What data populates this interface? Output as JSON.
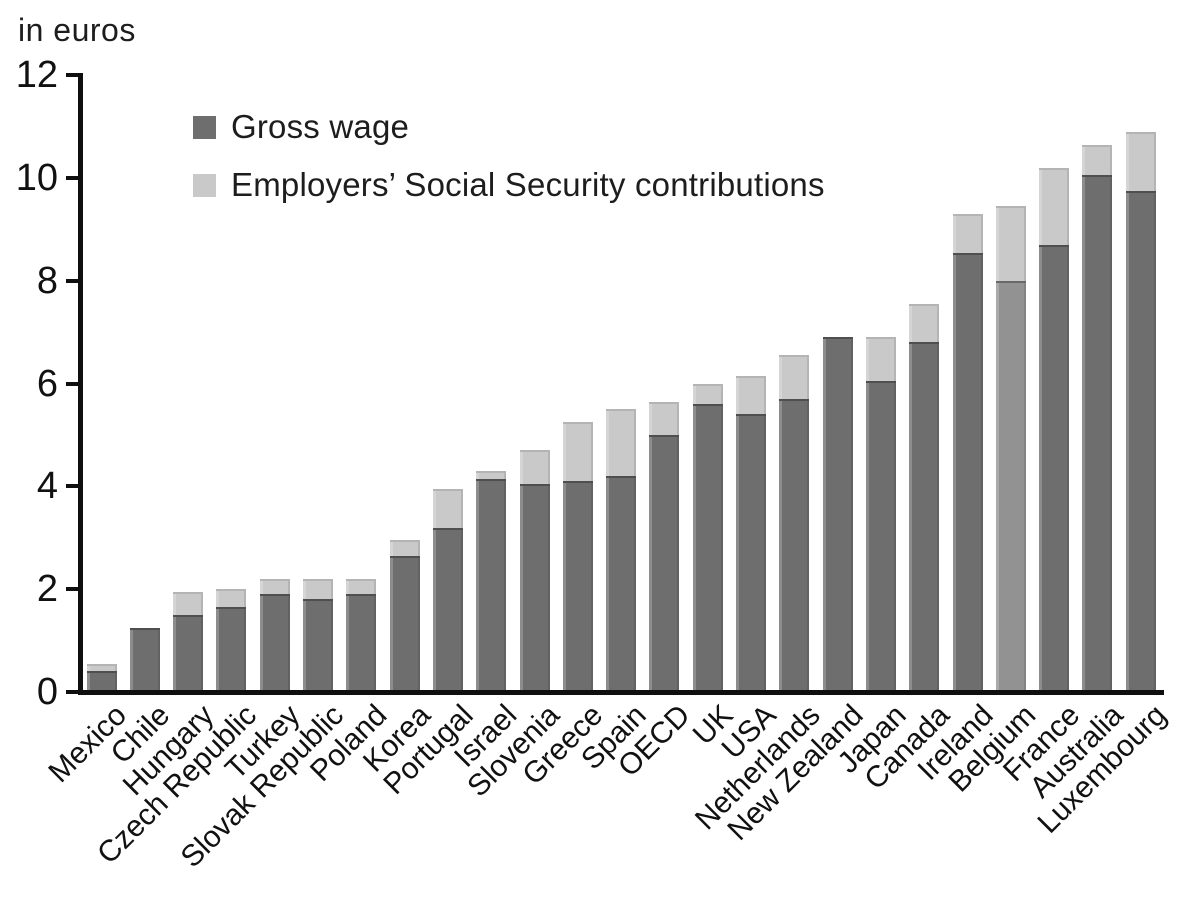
{
  "chart_data": {
    "type": "bar",
    "stacked": true,
    "title": "in euros",
    "categories": [
      "Mexico",
      "Chile",
      "Hungary",
      "Czech Republic",
      "Turkey",
      "Slovak Republic",
      "Poland",
      "Korea",
      "Portugal",
      "Israel",
      "Slovenia",
      "Greece",
      "Spain",
      "OECD",
      "UK",
      "USA",
      "Netherlands",
      "New Zealand",
      "Japan",
      "Canada",
      "Ireland",
      "Belgium",
      "France",
      "Australia",
      "Luxembourg"
    ],
    "series": [
      {
        "name": "Gross wage",
        "values": [
          0.4,
          1.25,
          1.5,
          1.65,
          1.9,
          1.8,
          1.9,
          2.65,
          3.2,
          4.15,
          4.05,
          4.1,
          4.2,
          5.0,
          5.6,
          5.4,
          5.7,
          6.9,
          6.05,
          6.8,
          8.55,
          8.0,
          8.7,
          10.05,
          9.75
        ]
      },
      {
        "name": "Employers’ Social Security contributions",
        "values": [
          0.15,
          0,
          0.45,
          0.35,
          0.3,
          0.4,
          0.3,
          0.3,
          0.75,
          0.15,
          0.65,
          1.15,
          1.3,
          0.65,
          0.4,
          0.75,
          0.85,
          0,
          0.85,
          0.75,
          0.75,
          1.45,
          1.5,
          0.6,
          1.15
        ]
      }
    ],
    "ylim": [
      0,
      12
    ],
    "yticks": [
      0,
      2,
      4,
      6,
      8,
      10,
      12
    ],
    "grid": false,
    "legend_position": "top-left-inside",
    "highlight_category": "Belgium",
    "colors": {
      "gross_wage": "#6e6e6e",
      "gross_wage_highlight": "#929292",
      "employer_ssc": "#c9c9c9",
      "axis": "#0f0f0f",
      "text": "#1d1d1d",
      "background": "#ffffff"
    }
  }
}
